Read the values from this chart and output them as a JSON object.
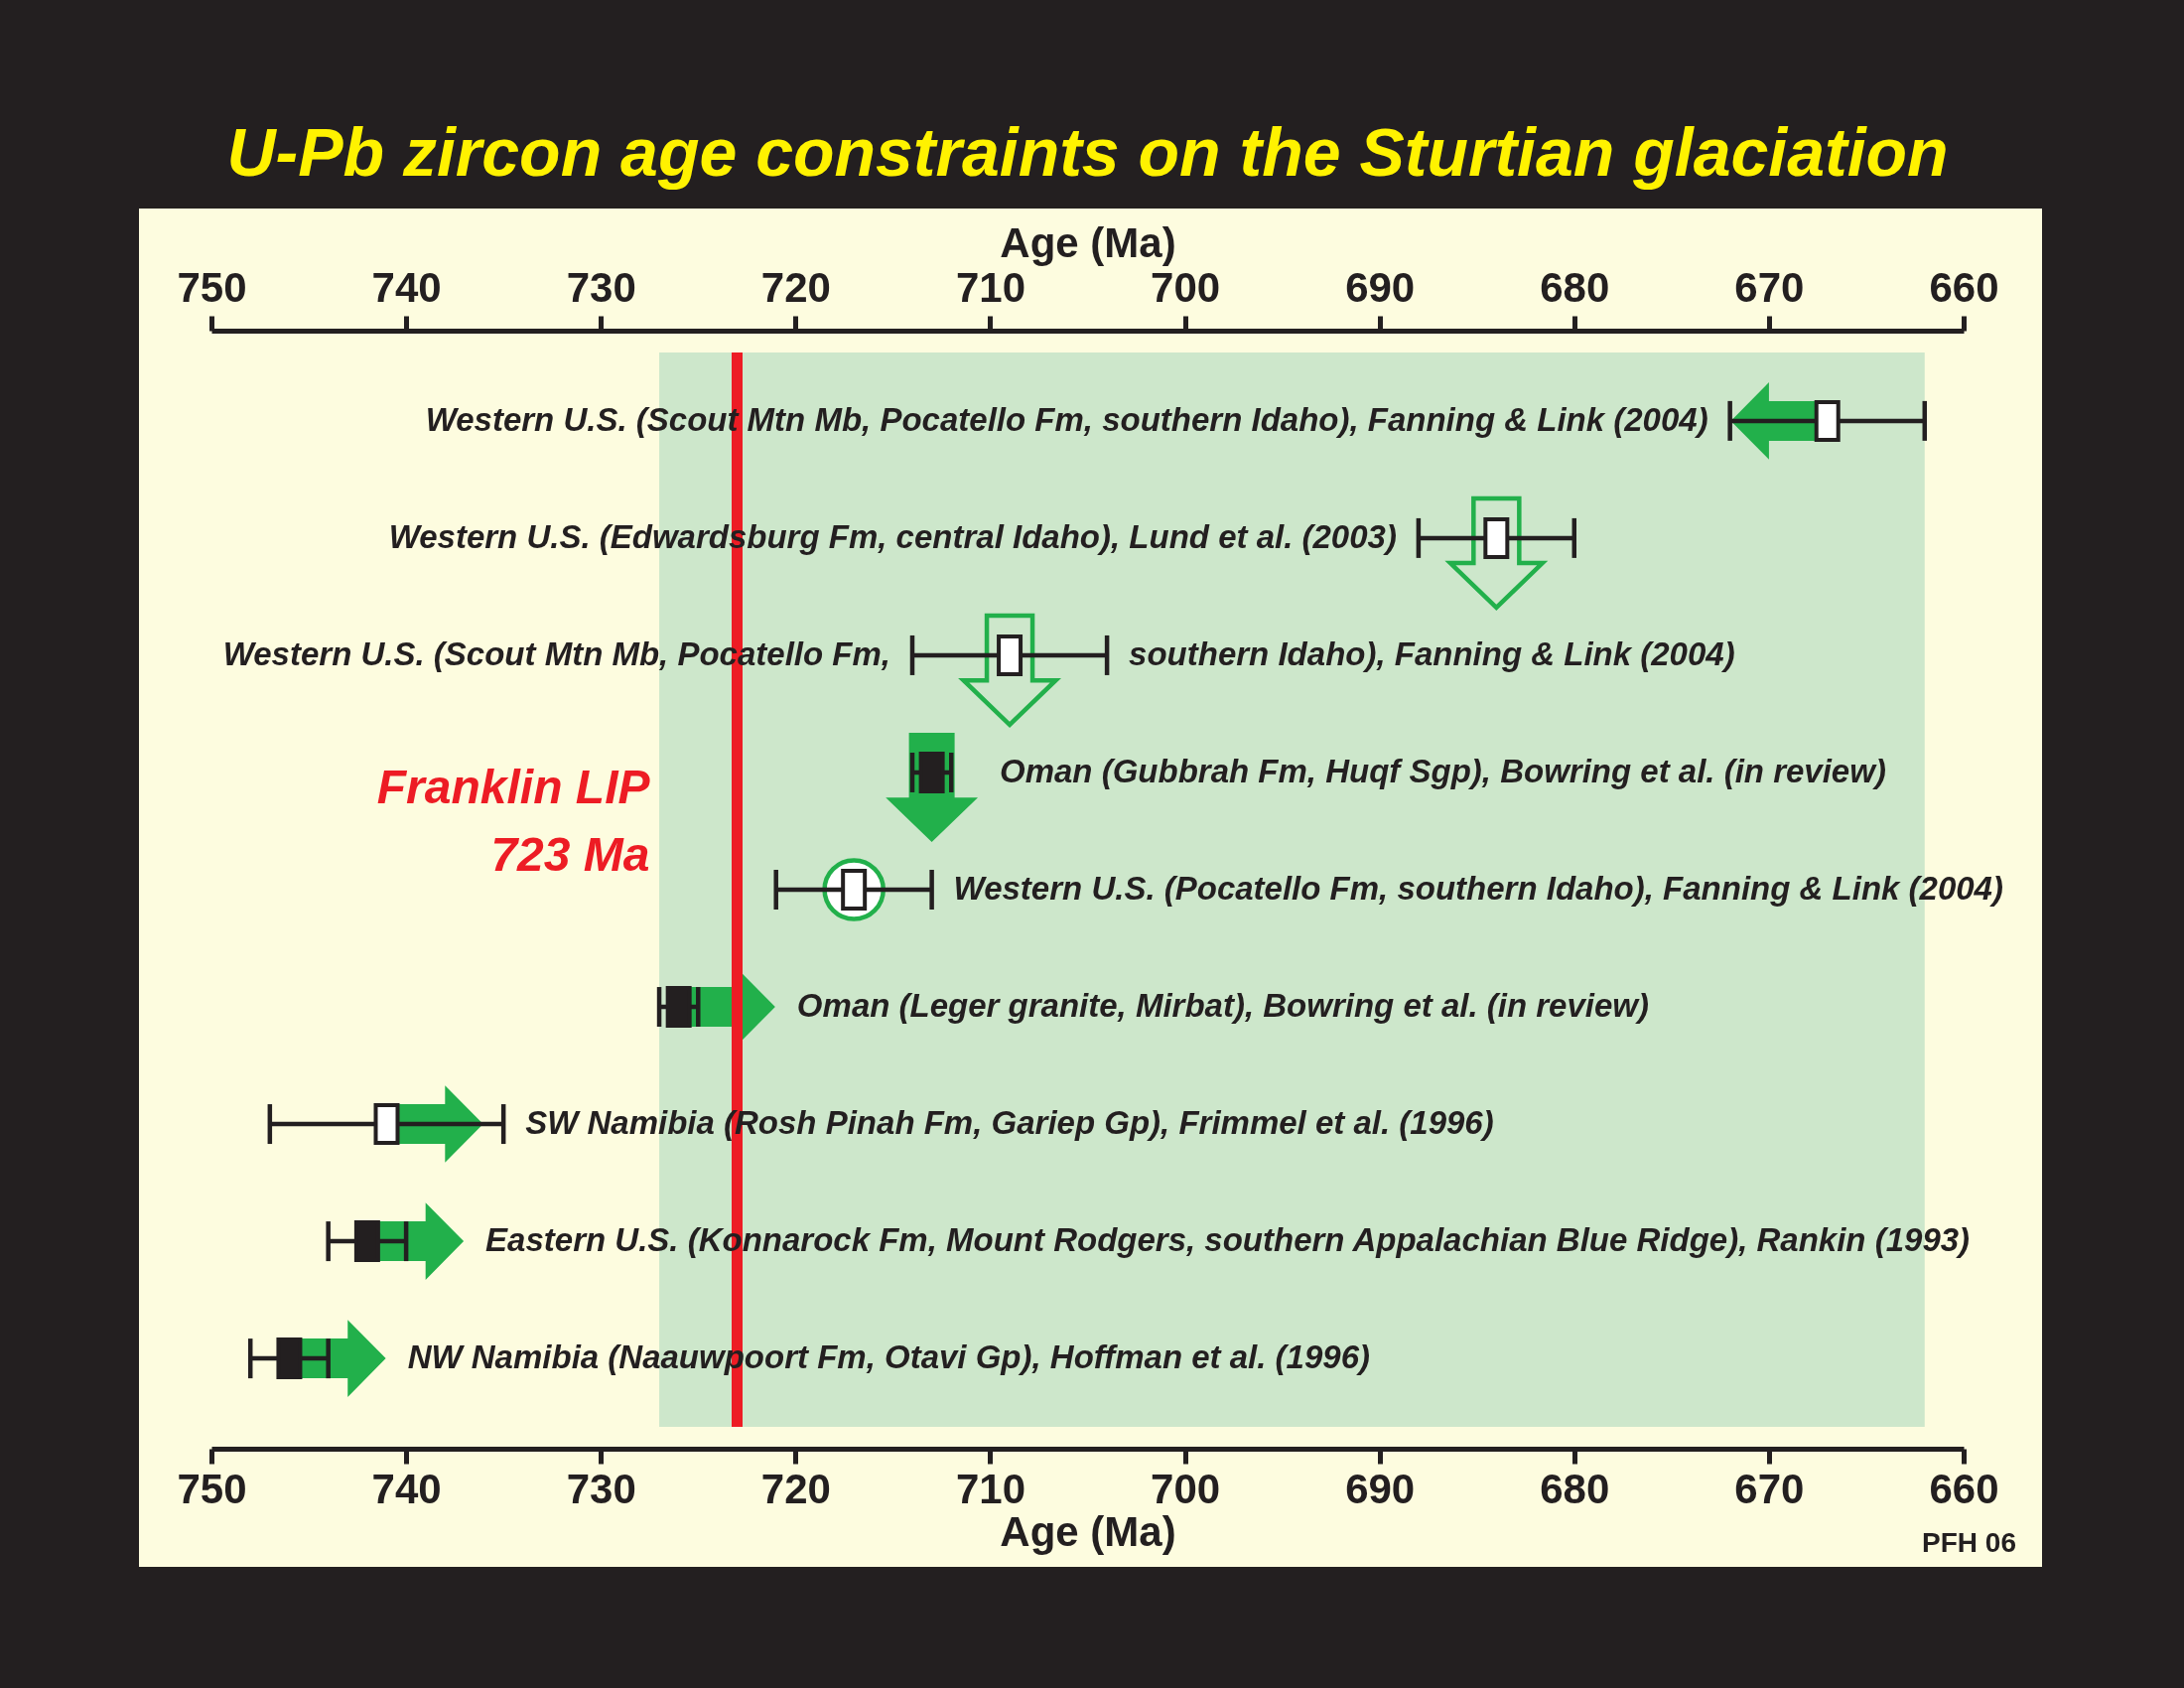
{
  "chart_data": {
    "type": "scatter",
    "title": "U-Pb zircon age constraints on the Sturtian glaciation",
    "xlabel": "Age (Ma)",
    "x2label": "Age (Ma)",
    "orientation": "horizontal",
    "marker": "square",
    "categories": [
      "Western U.S. (Scout Mtn Mb, Pocatello Fm, southern Idaho), Fanning & Link (2004)",
      "Western U.S. (Edwardsburg Fm, central Idaho), Lund et al. (2003)",
      "Western U.S. (Scout Mtn Mb, Pocatello Fm, southern Idaho), Fanning & Link (2004)",
      "Oman (Gubbrah Fm, Huqf Sgp), Bowring et al. (in review)",
      "Western U.S. (Pocatello Fm, southern Idaho), Fanning & Link (2004)",
      "Oman (Leger granite, Mirbat), Bowring et al. (in review)",
      "SW Namibia (Rosh Pinah Fm, Gariep Gp), Frimmel et al. (1996)",
      "Eastern U.S. (Konnarock Fm, Mount Rodgers, southern Appalachian Blue Ridge), Rankin (1993)",
      "NW Namibia (Naauwpoort Fm, Otavi Gp), Hoffman et al. (1996)"
    ],
    "values": [
      667,
      684,
      709,
      713,
      717,
      726,
      741,
      742,
      746
    ],
    "errors": [
      5,
      4,
      5,
      1,
      4,
      1,
      6,
      2,
      2
    ],
    "colors": [
      "#ffffff",
      "#ffffff",
      "#ffffff",
      "#231f20",
      "#ffffff",
      "#231f20",
      "#ffffff",
      "#231f20",
      "#231f20"
    ],
    "xlim": [
      750,
      660
    ],
    "xticks": [
      750,
      740,
      730,
      720,
      710,
      700,
      690,
      680,
      670,
      660
    ],
    "x2lim": [
      750,
      660
    ],
    "x2ticks": [
      750,
      740,
      730,
      720,
      710,
      700,
      690,
      680,
      670,
      660
    ],
    "ref_lines": [
      {
        "axis": "x",
        "value": 723,
        "label": "Franklin LIP\n723 Ma",
        "color": "#ed1c24",
        "line_style": "solid"
      }
    ],
    "bands": [
      {
        "axis": "x",
        "from": 727,
        "to": 662,
        "color": "#cde7cb"
      }
    ],
    "annotations": [
      "PFH 06"
    ]
  }
}
